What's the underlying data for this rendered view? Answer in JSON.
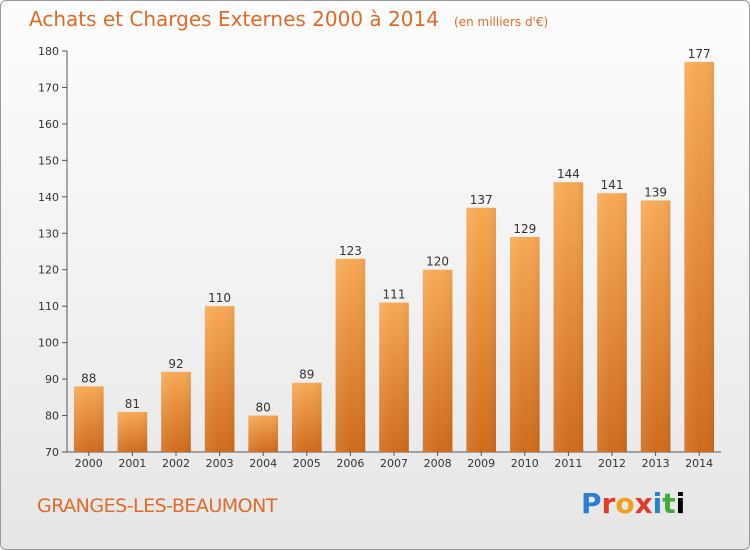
{
  "header": {
    "title": "Achats et Charges Externes 2000 à 2014",
    "subtitle": "(en milliers d'€)"
  },
  "footer": {
    "commune": "GRANGES-LES-BEAUMONT",
    "logo": "Proxiti"
  },
  "colors": {
    "accent": "#e06a2a",
    "bar_light": "#f6a24f",
    "bar_dark": "#c8661a"
  },
  "chart_data": {
    "type": "bar",
    "title": "Achats et Charges Externes 2000 à 2014",
    "subtitle": "(en milliers d'€)",
    "xlabel": "",
    "ylabel": "",
    "ylim": [
      70,
      180
    ],
    "yticks": [
      70,
      80,
      90,
      100,
      110,
      120,
      130,
      140,
      150,
      160,
      170,
      180
    ],
    "categories": [
      "2000",
      "2001",
      "2002",
      "2003",
      "2004",
      "2005",
      "2006",
      "2007",
      "2008",
      "2009",
      "2010",
      "2011",
      "2012",
      "2013",
      "2014"
    ],
    "values": [
      88,
      81,
      92,
      110,
      80,
      89,
      123,
      111,
      120,
      137,
      129,
      144,
      141,
      139,
      177
    ],
    "grid": false,
    "legend": "none"
  }
}
